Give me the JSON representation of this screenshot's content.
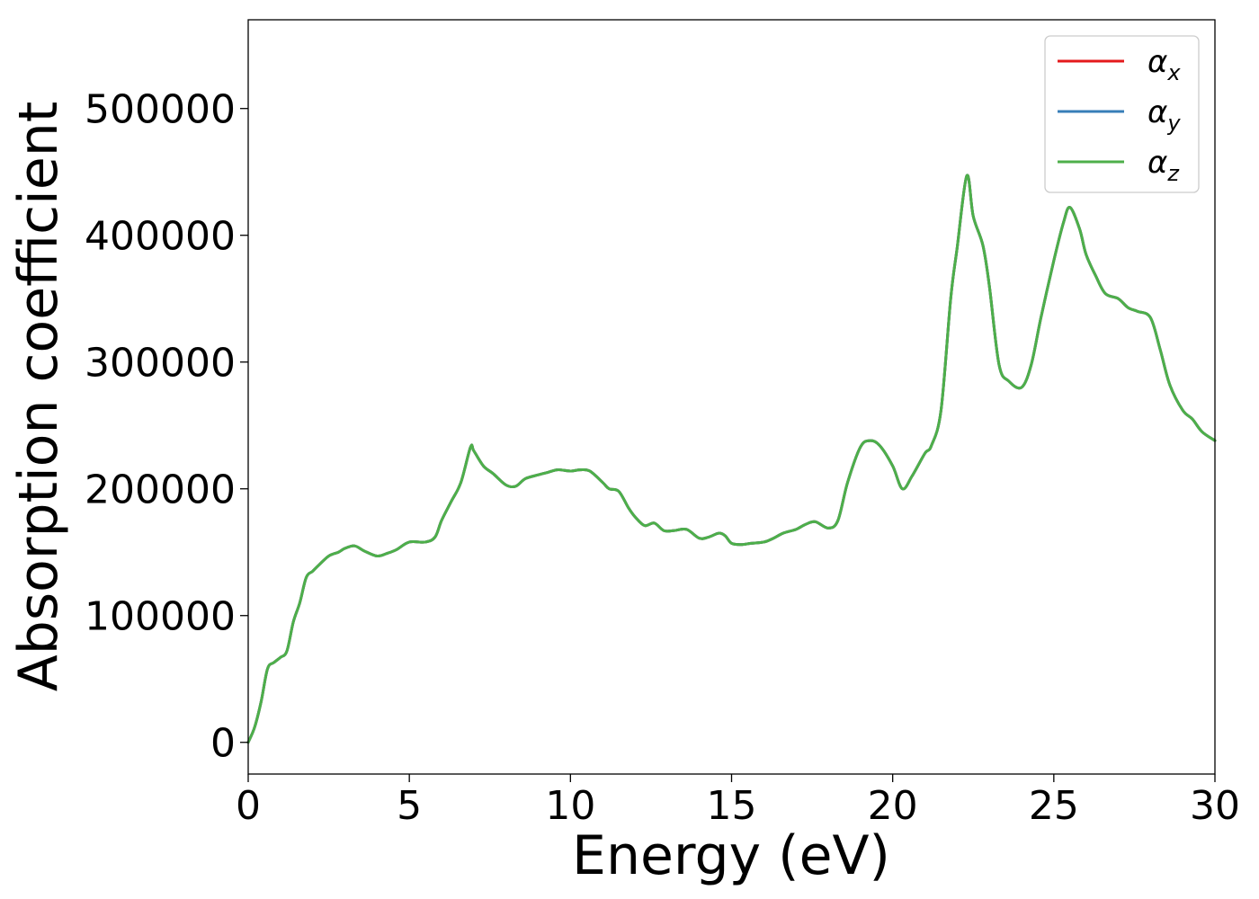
{
  "chart_data": {
    "type": "line",
    "xlabel": "Energy (eV)",
    "ylabel": "Absorption coefficient",
    "xlim": [
      0,
      30
    ],
    "ylim": [
      -25000,
      570000
    ],
    "xticks": [
      0,
      5,
      10,
      15,
      20,
      25,
      30
    ],
    "yticks": [
      0,
      100000,
      200000,
      300000,
      400000,
      500000
    ],
    "grid": false,
    "legend_position": "top-right",
    "series": [
      {
        "name": "αx",
        "label_main": "α",
        "label_sub": "x",
        "color": "#e41a1c",
        "x": [
          0,
          0.2,
          0.4,
          0.6,
          0.8,
          1.0,
          1.2,
          1.4,
          1.6,
          1.8,
          2.0,
          2.2,
          2.5,
          2.8,
          3.0,
          3.3,
          3.6,
          4.0,
          4.3,
          4.6,
          5.0,
          5.5,
          5.8,
          6.0,
          6.3,
          6.6,
          6.9,
          7.0,
          7.3,
          7.6,
          8.0,
          8.3,
          8.6,
          9.0,
          9.3,
          9.6,
          10.0,
          10.3,
          10.6,
          11.0,
          11.2,
          11.5,
          11.8,
          12.0,
          12.3,
          12.6,
          12.9,
          13.2,
          13.6,
          14.0,
          14.3,
          14.6,
          14.8,
          15.0,
          15.3,
          15.6,
          16.0,
          16.3,
          16.6,
          17.0,
          17.3,
          17.6,
          18.0,
          18.3,
          18.6,
          19.0,
          19.3,
          19.6,
          20.0,
          20.3,
          20.6,
          21.0,
          21.2,
          21.5,
          21.8,
          22.0,
          22.3,
          22.5,
          22.8,
          23.0,
          23.3,
          23.6,
          24.0,
          24.3,
          24.6,
          25.0,
          25.3,
          25.5,
          25.8,
          26.0,
          26.3,
          26.6,
          27.0,
          27.3,
          27.6,
          28.0,
          28.3,
          28.6,
          29.0,
          29.3,
          29.6,
          30.0
        ],
        "y": [
          0,
          12000,
          32000,
          58000,
          63000,
          67000,
          72000,
          95000,
          110000,
          130000,
          135000,
          140000,
          147000,
          150000,
          153000,
          155000,
          151000,
          147000,
          149000,
          152000,
          158000,
          158000,
          162000,
          175000,
          190000,
          205000,
          233000,
          230000,
          218000,
          212000,
          203000,
          202000,
          208000,
          211000,
          213000,
          215000,
          214000,
          215000,
          214000,
          205000,
          200000,
          198000,
          185000,
          178000,
          171000,
          173000,
          167000,
          167000,
          168000,
          161000,
          162000,
          165000,
          163000,
          157000,
          156000,
          157000,
          158000,
          161000,
          165000,
          168000,
          172000,
          174000,
          169000,
          175000,
          205000,
          233000,
          238000,
          234000,
          218000,
          200000,
          210000,
          228000,
          234000,
          262000,
          350000,
          390000,
          447000,
          415000,
          392000,
          360000,
          298000,
          285000,
          280000,
          298000,
          335000,
          380000,
          410000,
          422000,
          405000,
          385000,
          368000,
          354000,
          350000,
          343000,
          340000,
          335000,
          310000,
          282000,
          262000,
          255000,
          245000,
          238000
        ]
      },
      {
        "name": "αy",
        "label_main": "α",
        "label_sub": "y",
        "color": "#377eb8",
        "x": [
          0,
          0.2,
          0.4,
          0.6,
          0.8,
          1.0,
          1.2,
          1.4,
          1.6,
          1.8,
          2.0,
          2.2,
          2.5,
          2.8,
          3.0,
          3.3,
          3.6,
          4.0,
          4.3,
          4.6,
          5.0,
          5.5,
          5.8,
          6.0,
          6.3,
          6.6,
          6.9,
          7.0,
          7.3,
          7.6,
          8.0,
          8.3,
          8.6,
          9.0,
          9.3,
          9.6,
          10.0,
          10.3,
          10.6,
          11.0,
          11.2,
          11.5,
          11.8,
          12.0,
          12.3,
          12.6,
          12.9,
          13.2,
          13.6,
          14.0,
          14.3,
          14.6,
          14.8,
          15.0,
          15.3,
          15.6,
          16.0,
          16.3,
          16.6,
          17.0,
          17.3,
          17.6,
          18.0,
          18.3,
          18.6,
          19.0,
          19.3,
          19.6,
          20.0,
          20.3,
          20.6,
          21.0,
          21.2,
          21.5,
          21.8,
          22.0,
          22.3,
          22.5,
          22.8,
          23.0,
          23.3,
          23.6,
          24.0,
          24.3,
          24.6,
          25.0,
          25.3,
          25.5,
          25.8,
          26.0,
          26.3,
          26.6,
          27.0,
          27.3,
          27.6,
          28.0,
          28.3,
          28.6,
          29.0,
          29.3,
          29.6,
          30.0
        ],
        "y": [
          0,
          12000,
          32000,
          58000,
          63000,
          67000,
          72000,
          95000,
          110000,
          130000,
          135000,
          140000,
          147000,
          150000,
          153000,
          155000,
          151000,
          147000,
          149000,
          152000,
          158000,
          158000,
          162000,
          175000,
          190000,
          205000,
          233000,
          230000,
          218000,
          212000,
          203000,
          202000,
          208000,
          211000,
          213000,
          215000,
          214000,
          215000,
          214000,
          205000,
          200000,
          198000,
          185000,
          178000,
          171000,
          173000,
          167000,
          167000,
          168000,
          161000,
          162000,
          165000,
          163000,
          157000,
          156000,
          157000,
          158000,
          161000,
          165000,
          168000,
          172000,
          174000,
          169000,
          175000,
          205000,
          233000,
          238000,
          234000,
          218000,
          200000,
          210000,
          228000,
          234000,
          262000,
          350000,
          390000,
          447000,
          415000,
          392000,
          360000,
          298000,
          285000,
          280000,
          298000,
          335000,
          380000,
          410000,
          422000,
          405000,
          385000,
          368000,
          354000,
          350000,
          343000,
          340000,
          335000,
          310000,
          282000,
          262000,
          255000,
          245000,
          238000
        ]
      },
      {
        "name": "αz",
        "label_main": "α",
        "label_sub": "z",
        "color": "#4daf4a",
        "x": [
          0,
          0.2,
          0.4,
          0.6,
          0.8,
          1.0,
          1.2,
          1.4,
          1.6,
          1.8,
          2.0,
          2.2,
          2.5,
          2.8,
          3.0,
          3.3,
          3.6,
          4.0,
          4.3,
          4.6,
          5.0,
          5.5,
          5.8,
          6.0,
          6.3,
          6.6,
          6.9,
          7.0,
          7.3,
          7.6,
          8.0,
          8.3,
          8.6,
          9.0,
          9.3,
          9.6,
          10.0,
          10.3,
          10.6,
          11.0,
          11.2,
          11.5,
          11.8,
          12.0,
          12.3,
          12.6,
          12.9,
          13.2,
          13.6,
          14.0,
          14.3,
          14.6,
          14.8,
          15.0,
          15.3,
          15.6,
          16.0,
          16.3,
          16.6,
          17.0,
          17.3,
          17.6,
          18.0,
          18.3,
          18.6,
          19.0,
          19.3,
          19.6,
          20.0,
          20.3,
          20.6,
          21.0,
          21.2,
          21.5,
          21.8,
          22.0,
          22.3,
          22.5,
          22.8,
          23.0,
          23.3,
          23.6,
          24.0,
          24.3,
          24.6,
          25.0,
          25.3,
          25.5,
          25.8,
          26.0,
          26.3,
          26.6,
          27.0,
          27.3,
          27.6,
          28.0,
          28.3,
          28.6,
          29.0,
          29.3,
          29.6,
          30.0
        ],
        "y": [
          0,
          12000,
          32000,
          58000,
          63000,
          67000,
          72000,
          95000,
          110000,
          130000,
          135000,
          140000,
          147000,
          150000,
          153000,
          155000,
          151000,
          147000,
          149000,
          152000,
          158000,
          158000,
          162000,
          175000,
          190000,
          205000,
          233000,
          230000,
          218000,
          212000,
          203000,
          202000,
          208000,
          211000,
          213000,
          215000,
          214000,
          215000,
          214000,
          205000,
          200000,
          198000,
          185000,
          178000,
          171000,
          173000,
          167000,
          167000,
          168000,
          161000,
          162000,
          165000,
          163000,
          157000,
          156000,
          157000,
          158000,
          161000,
          165000,
          168000,
          172000,
          174000,
          169000,
          175000,
          205000,
          233000,
          238000,
          234000,
          218000,
          200000,
          210000,
          228000,
          234000,
          262000,
          350000,
          390000,
          447000,
          415000,
          392000,
          360000,
          298000,
          285000,
          280000,
          298000,
          335000,
          380000,
          410000,
          422000,
          405000,
          385000,
          368000,
          354000,
          350000,
          343000,
          340000,
          335000,
          310000,
          282000,
          262000,
          255000,
          245000,
          238000
        ]
      }
    ]
  }
}
